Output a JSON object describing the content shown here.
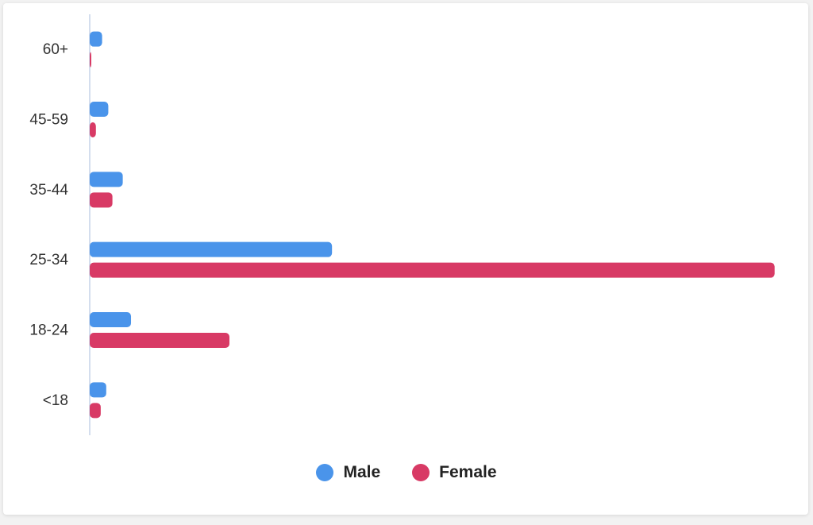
{
  "chart_data": {
    "type": "bar",
    "orientation": "horizontal",
    "categories": [
      "60+",
      "45-59",
      "35-44",
      "25-34",
      "18-24",
      "<18"
    ],
    "series": [
      {
        "name": "Male",
        "color": "#4a94ea",
        "values": [
          1.8,
          2.7,
          4.8,
          35.2,
          6.0,
          2.4
        ]
      },
      {
        "name": "Female",
        "color": "#d83a65",
        "values": [
          0.2,
          0.9,
          3.3,
          99.5,
          20.3,
          1.6
        ]
      }
    ],
    "xlim": [
      0,
      100
    ],
    "grid": false,
    "legend": "bottom-center"
  }
}
